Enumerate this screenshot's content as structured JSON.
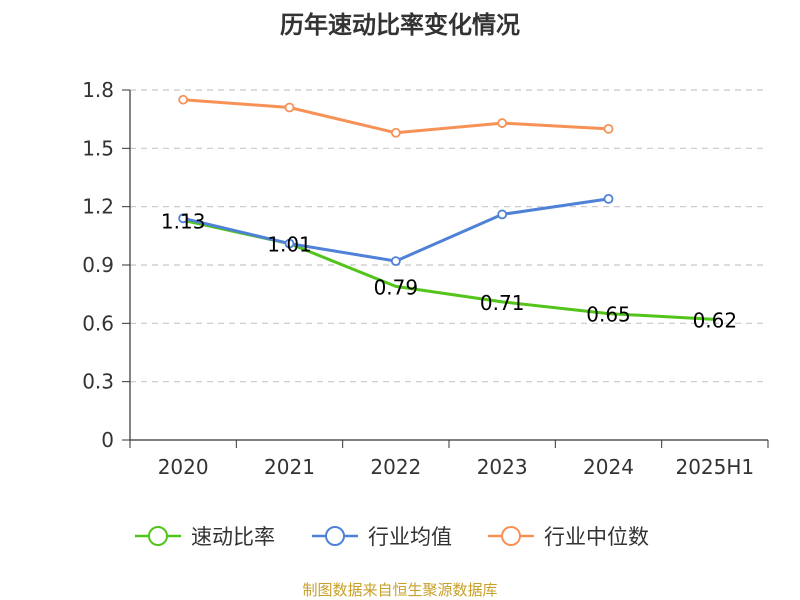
{
  "chart_data": {
    "type": "line",
    "title": "历年速动比率变化情况",
    "categories": [
      "2020",
      "2021",
      "2022",
      "2023",
      "2024",
      "2025H1"
    ],
    "ylim": [
      0,
      1.8
    ],
    "yticks": [
      "0",
      "0.3",
      "0.6",
      "0.9",
      "1.2",
      "1.5",
      "1.8"
    ],
    "grid": true,
    "legend_position": "bottom",
    "series": [
      {
        "name": "速动比率",
        "color": "#52c41a",
        "marker": "none",
        "show_labels": true,
        "values": [
          1.13,
          1.01,
          0.79,
          0.71,
          0.65,
          0.62
        ],
        "labels": [
          "1.13",
          "1.01",
          "0.79",
          "0.71",
          "0.65",
          "0.62"
        ]
      },
      {
        "name": "行业均值",
        "color": "#4f81d6",
        "marker": "circle",
        "show_labels": false,
        "values": [
          1.14,
          1.01,
          0.92,
          1.16,
          1.24,
          null
        ]
      },
      {
        "name": "行业中位数",
        "color": "#f79257",
        "marker": "circle",
        "show_labels": false,
        "values": [
          1.75,
          1.71,
          1.58,
          1.63,
          1.6,
          null
        ]
      }
    ],
    "source": "制图数据来自恒生聚源数据库",
    "source_color": "#c8a02a"
  }
}
